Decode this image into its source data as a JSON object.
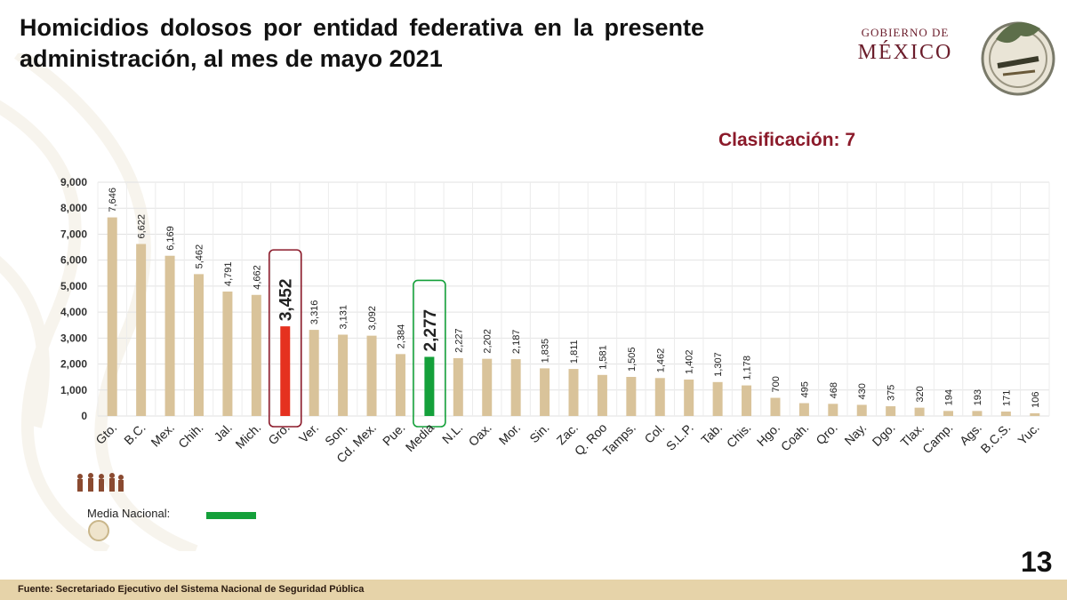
{
  "header": {
    "title": "Homicidios dolosos por entidad federativa en la presente administración, al mes de mayo 2021",
    "logo_line1": "GOBIERNO DE",
    "logo_line2": "MÉXICO",
    "seal_icon": "mexico-2021-seal-icon"
  },
  "classification": "Clasificación: 7",
  "chart_data": {
    "type": "bar",
    "categories": [
      "Gto.",
      "B.C.",
      "Mex.",
      "Chih.",
      "Jal.",
      "Mich.",
      "Gro.",
      "Ver.",
      "Son.",
      "Cd. Mex.",
      "Pue.",
      "Media",
      "N.L.",
      "Oax.",
      "Mor.",
      "Sin.",
      "Zac.",
      "Q. Roo",
      "Tamps.",
      "Col.",
      "S.L.P.",
      "Tab.",
      "Chis.",
      "Hgo.",
      "Coah.",
      "Qro.",
      "Nay.",
      "Dgo.",
      "Tlax.",
      "Camp.",
      "Ags.",
      "B.C.S.",
      "Yuc."
    ],
    "values": [
      7646,
      6622,
      6169,
      5462,
      4791,
      4662,
      3452,
      3316,
      3131,
      3092,
      2384,
      2277,
      2227,
      2202,
      2187,
      1835,
      1811,
      1581,
      1505,
      1462,
      1402,
      1307,
      1178,
      700,
      495,
      468,
      430,
      375,
      320,
      194,
      193,
      171,
      106
    ],
    "value_labels": [
      "7,646",
      "6,622",
      "6,169",
      "5,462",
      "4,791",
      "4,662",
      "3,452",
      "3,316",
      "3,131",
      "3,092",
      "2,384",
      "2,277",
      "2,227",
      "2,202",
      "2,187",
      "1,835",
      "1,811",
      "1,581",
      "1,505",
      "1,462",
      "1,402",
      "1,307",
      "1,178",
      "700",
      "495",
      "468",
      "430",
      "375",
      "320",
      "194",
      "193",
      "171",
      "106"
    ],
    "yticks": [
      "0",
      "1,000",
      "2,000",
      "3,000",
      "4,000",
      "5,000",
      "6,000",
      "7,000",
      "8,000",
      "9,000"
    ],
    "ylim": [
      0,
      9000
    ],
    "grid": true,
    "highlight": {
      "Gro.": "#e5311f",
      "Media": "#14a03a"
    },
    "bar_color": "#d9c39a",
    "highlight_box_colors": {
      "Gro.": "#8b1a2a",
      "Media": "#14a03a"
    }
  },
  "legend": {
    "label": "Media Nacional:",
    "color": "#14a03a"
  },
  "footer": {
    "source": "Fuente: Secretariado Ejecutivo del Sistema Nacional de Seguridad Pública"
  },
  "page_number": "13"
}
